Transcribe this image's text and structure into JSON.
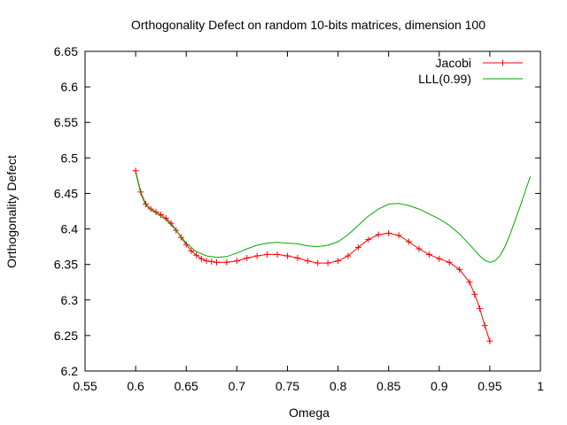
{
  "chart_data": {
    "type": "line",
    "title": "Orthogonality Defect on random 10-bits matrices, dimension 100",
    "xlabel": "Omega",
    "ylabel": "Orthogonality Defect",
    "xlim": [
      0.55,
      1.0
    ],
    "ylim": [
      6.2,
      6.65
    ],
    "xticks": [
      0.55,
      0.6,
      0.65,
      0.7,
      0.75,
      0.8,
      0.85,
      0.9,
      0.95,
      1.0
    ],
    "xtick_labels": [
      "0.55",
      "0.6",
      "0.65",
      "0.7",
      "0.75",
      "0.8",
      "0.85",
      "0.9",
      "0.95",
      "1"
    ],
    "yticks": [
      6.2,
      6.25,
      6.3,
      6.35,
      6.4,
      6.45,
      6.5,
      6.55,
      6.6,
      6.65
    ],
    "ytick_labels": [
      "6.2",
      "6.25",
      "6.3",
      "6.35",
      "6.4",
      "6.45",
      "6.5",
      "6.55",
      "6.6",
      "6.65"
    ],
    "grid": false,
    "legend": "top-right",
    "series": [
      {
        "name": "Jacobi",
        "color": "#ff0000",
        "marker": "plus",
        "x": [
          0.6,
          0.605,
          0.61,
          0.615,
          0.62,
          0.625,
          0.63,
          0.635,
          0.64,
          0.645,
          0.65,
          0.655,
          0.66,
          0.665,
          0.67,
          0.675,
          0.68,
          0.69,
          0.7,
          0.71,
          0.72,
          0.73,
          0.74,
          0.75,
          0.76,
          0.77,
          0.78,
          0.79,
          0.8,
          0.81,
          0.82,
          0.83,
          0.84,
          0.85,
          0.86,
          0.87,
          0.88,
          0.89,
          0.9,
          0.91,
          0.92,
          0.93,
          0.935,
          0.94,
          0.945,
          0.95
        ],
        "values": [
          6.482,
          6.452,
          6.435,
          6.428,
          6.424,
          6.42,
          6.415,
          6.408,
          6.398,
          6.388,
          6.378,
          6.369,
          6.363,
          6.358,
          6.355,
          6.354,
          6.353,
          6.353,
          6.355,
          6.359,
          6.362,
          6.364,
          6.364,
          6.362,
          6.359,
          6.355,
          6.352,
          6.352,
          6.355,
          6.362,
          6.374,
          6.385,
          6.392,
          6.394,
          6.391,
          6.382,
          6.372,
          6.364,
          6.358,
          6.353,
          6.343,
          6.325,
          6.308,
          6.288,
          6.264,
          6.242
        ]
      },
      {
        "name": "LLL(0.99)",
        "color": "#00aa00",
        "marker": "none",
        "x": [
          0.6,
          0.605,
          0.61,
          0.62,
          0.63,
          0.64,
          0.65,
          0.66,
          0.67,
          0.68,
          0.69,
          0.7,
          0.71,
          0.72,
          0.73,
          0.74,
          0.75,
          0.76,
          0.77,
          0.78,
          0.79,
          0.8,
          0.81,
          0.82,
          0.83,
          0.84,
          0.85,
          0.86,
          0.87,
          0.88,
          0.89,
          0.9,
          0.91,
          0.92,
          0.93,
          0.94,
          0.945,
          0.95,
          0.955,
          0.96,
          0.965,
          0.97,
          0.975,
          0.98,
          0.985,
          0.99
        ],
        "values": [
          6.48,
          6.45,
          6.433,
          6.422,
          6.413,
          6.398,
          6.38,
          6.368,
          6.362,
          6.36,
          6.361,
          6.366,
          6.372,
          6.377,
          6.38,
          6.381,
          6.38,
          6.379,
          6.376,
          6.375,
          6.377,
          6.382,
          6.392,
          6.405,
          6.418,
          6.428,
          6.435,
          6.436,
          6.433,
          6.428,
          6.421,
          6.414,
          6.405,
          6.393,
          6.378,
          6.362,
          6.356,
          6.353,
          6.355,
          6.362,
          6.375,
          6.392,
          6.412,
          6.432,
          6.453,
          6.474
        ]
      }
    ]
  }
}
